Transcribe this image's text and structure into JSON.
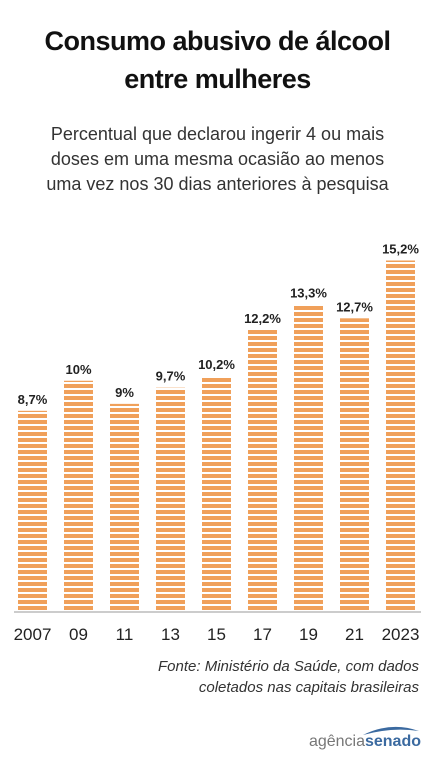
{
  "header": {
    "title_line1": "Consumo abusivo de álcool",
    "title_line2": "entre mulheres",
    "subtitle_line1": "Percentual que declarou ingerir 4 ou mais",
    "subtitle_line2": "doses em uma mesma ocasião ao menos",
    "subtitle_line3": "uma vez nos 30 dias anteriores à pesquisa"
  },
  "chart_data": {
    "type": "bar",
    "categories": [
      "2007",
      "09",
      "11",
      "13",
      "15",
      "17",
      "19",
      "21",
      "2023"
    ],
    "values": [
      8.7,
      10,
      9,
      9.7,
      10.2,
      12.2,
      13.3,
      12.7,
      15.2
    ],
    "value_labels": [
      "8,7%",
      "10%",
      "9%",
      "9,7%",
      "10,2%",
      "12,2%",
      "13,3%",
      "12,7%",
      "15,2%"
    ],
    "ylim": [
      0,
      16
    ],
    "grid": false,
    "bar_color": "#f0a05a",
    "stripe_color": "#ffffff"
  },
  "source": {
    "line1": "Fonte: Ministério da Saúde, com dados",
    "line2": "coletados nas capitais brasileiras"
  },
  "logo": {
    "part1": "agência",
    "part2": "senado",
    "swoosh_color": "#3b6aa0"
  }
}
